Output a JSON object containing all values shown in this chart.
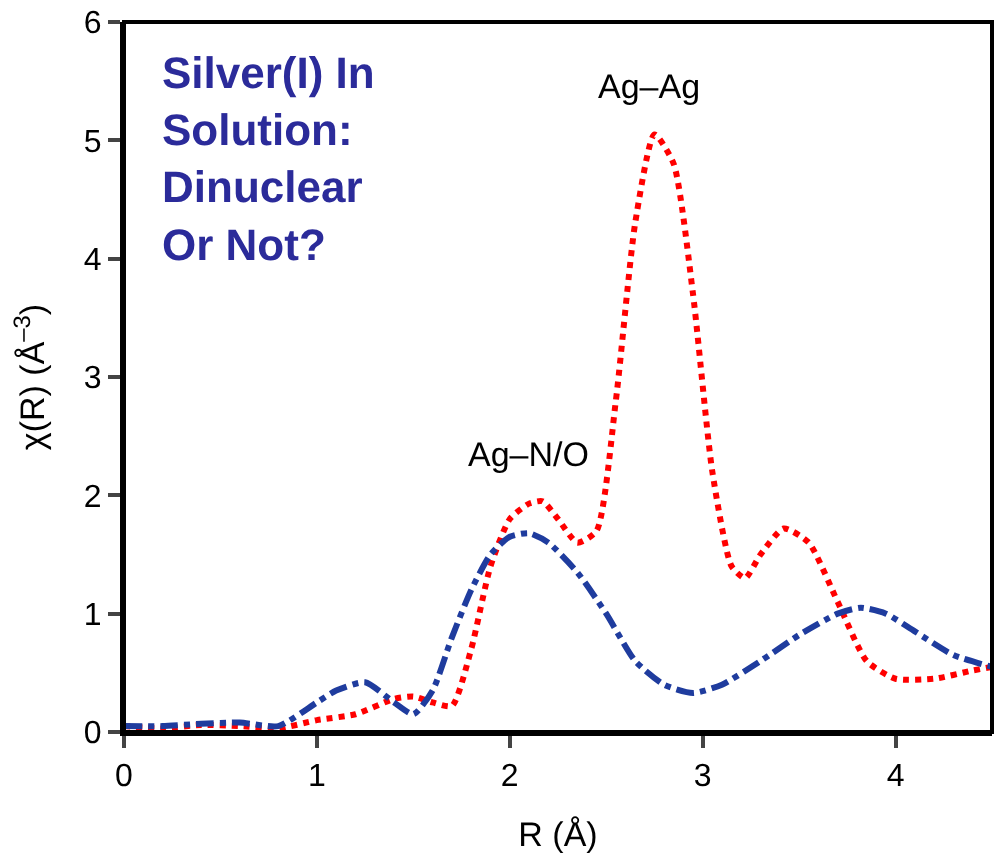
{
  "chart_data": {
    "type": "line",
    "xlabel": "R (Å)",
    "ylabel": "χ(R) (Å$^{–3}$)",
    "xlim": [
      0,
      4.5
    ],
    "ylim": [
      0,
      6
    ],
    "xticks": [
      0,
      1,
      2,
      3,
      4
    ],
    "yticks": [
      0,
      1,
      2,
      3,
      4,
      5,
      6
    ],
    "legend": false,
    "series": [
      {
        "color": "#ff0000",
        "line_style": "dotted",
        "x": [
          0,
          0.2,
          0.4,
          0.6,
          0.8,
          1.0,
          1.2,
          1.4,
          1.5,
          1.6,
          1.7,
          1.8,
          1.9,
          2.0,
          2.1,
          2.17,
          2.25,
          2.35,
          2.45,
          2.55,
          2.65,
          2.75,
          2.85,
          2.95,
          3.05,
          3.15,
          3.22,
          3.3,
          3.42,
          3.55,
          3.7,
          3.85,
          4.0,
          4.2,
          4.4,
          4.5
        ],
        "values": [
          0.05,
          0.03,
          0.06,
          0.05,
          0.03,
          0.1,
          0.15,
          0.28,
          0.3,
          0.25,
          0.22,
          0.7,
          1.4,
          1.8,
          1.93,
          1.95,
          1.8,
          1.6,
          1.7,
          2.8,
          4.3,
          5.05,
          4.8,
          3.7,
          2.2,
          1.4,
          1.3,
          1.5,
          1.72,
          1.6,
          1.1,
          0.6,
          0.45,
          0.45,
          0.52,
          0.55
        ]
      },
      {
        "color": "#1f3c9e",
        "line_style": "dashdot",
        "x": [
          0,
          0.2,
          0.4,
          0.6,
          0.8,
          1.0,
          1.1,
          1.25,
          1.4,
          1.5,
          1.6,
          1.7,
          1.8,
          1.9,
          2.0,
          2.1,
          2.2,
          2.35,
          2.5,
          2.65,
          2.8,
          2.95,
          3.1,
          3.3,
          3.5,
          3.7,
          3.82,
          3.95,
          4.1,
          4.3,
          4.5
        ],
        "values": [
          0.05,
          0.05,
          0.07,
          0.08,
          0.05,
          0.25,
          0.35,
          0.42,
          0.25,
          0.15,
          0.35,
          0.8,
          1.2,
          1.5,
          1.65,
          1.68,
          1.6,
          1.35,
          1.0,
          0.6,
          0.4,
          0.33,
          0.4,
          0.6,
          0.82,
          1.0,
          1.05,
          1.0,
          0.85,
          0.65,
          0.55
        ]
      }
    ],
    "annotations": [
      "Silver(I) In Solution: Dinuclear Or Not?",
      {
        "text": "Ag–N/O",
        "x": 2.17,
        "y": 1.95
      },
      {
        "text": "Ag–Ag",
        "x": 2.75,
        "y": 5.05
      }
    ]
  }
}
